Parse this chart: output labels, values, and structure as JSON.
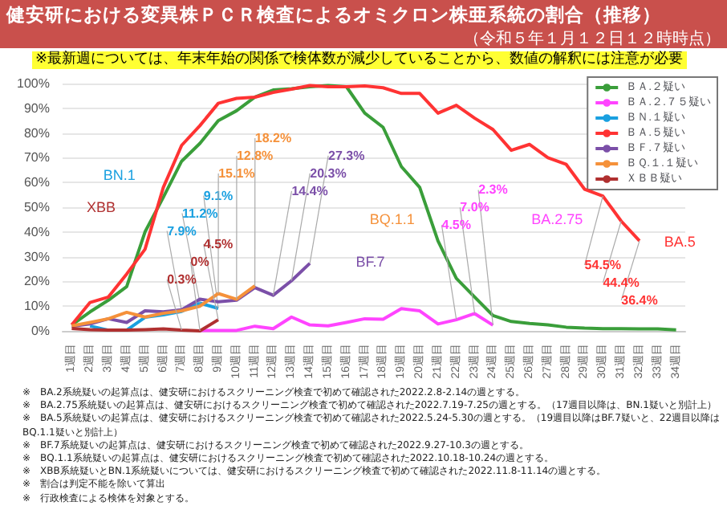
{
  "chart_data": {
    "type": "line",
    "title": "健安研における変異株ＰＣＲ検査によるオミクロン株亜系統の割合（推移）",
    "subtitle": "（令和５年１月１２日１２時時点）",
    "categories": [
      "1週目",
      "2週目",
      "3週目",
      "4週目",
      "5週目",
      "6週目",
      "7週目",
      "8週目",
      "9週目",
      "10週目",
      "11週目",
      "12週目",
      "13週目",
      "14週目",
      "15週目",
      "16週目",
      "17週目",
      "18週目",
      "19週目",
      "20週目",
      "21週目",
      "22週目",
      "23週目",
      "24週目",
      "25週目",
      "26週目",
      "27週目",
      "28週目",
      "29週目",
      "30週目",
      "31週目",
      "32週目",
      "33週目",
      "34週目"
    ],
    "series": [
      {
        "name": "ＢＡ.２疑い",
        "color": "#3a9e3a",
        "values": [
          2.4,
          7.7,
          12.4,
          17.9,
          40,
          54,
          68.6,
          75.8,
          85,
          89,
          94.5,
          97.4,
          97.9,
          98.7,
          99.2,
          98.7,
          88,
          82.3,
          66.4,
          58,
          36.3,
          21.2,
          13.7,
          6.2,
          3.8,
          3,
          2.4,
          1.5,
          1.1,
          0.9,
          0.9,
          0.8,
          0.8,
          0.4
        ]
      },
      {
        "name": "ＢＡ.２.７５疑い",
        "color": "#ff44ff",
        "values": [
          null,
          null,
          null,
          null,
          null,
          null,
          null,
          0.2,
          0.2,
          0.2,
          1.9,
          0.9,
          5.6,
          2.4,
          2,
          3.4,
          4.9,
          4.7,
          9,
          8.1,
          2.8,
          4.5,
          7.0,
          2.3,
          null,
          null,
          null,
          null,
          null,
          null,
          null,
          null,
          null,
          null
        ],
        "value_labels": [
          null,
          null,
          null,
          null,
          null,
          null,
          null,
          null,
          null,
          null,
          null,
          null,
          null,
          null,
          null,
          null,
          null,
          null,
          null,
          null,
          null,
          "4.5%",
          "7.0%",
          "2.3%",
          null,
          null,
          null,
          null,
          null,
          null,
          null,
          null,
          null,
          null
        ]
      },
      {
        "name": "ＢＮ.１疑い",
        "color": "#1aa0e0",
        "values": [
          null,
          2,
          0.3,
          0.3,
          5.5,
          6.5,
          7.9,
          11.2,
          9.1,
          null,
          null,
          null,
          null,
          null,
          null,
          null,
          null,
          null,
          null,
          null,
          null,
          null,
          null,
          null,
          null,
          null,
          null,
          null,
          null,
          null,
          null,
          null,
          null,
          null
        ],
        "value_labels": [
          null,
          null,
          null,
          null,
          null,
          null,
          "7.9%",
          "11.2%",
          "9.1%",
          null,
          null,
          null,
          null,
          null,
          null,
          null,
          null,
          null,
          null,
          null,
          null,
          null,
          null,
          null,
          null,
          null,
          null,
          null,
          null,
          null,
          null,
          null,
          null,
          null
        ]
      },
      {
        "name": "ＢＡ.５疑い",
        "color": "#ff3333",
        "values": [
          2.4,
          11.5,
          13.7,
          23,
          33,
          58,
          75,
          83,
          92,
          94,
          94.5,
          96.4,
          97.7,
          99.2,
          98.7,
          98.7,
          99,
          98.3,
          96,
          96,
          88,
          91.2,
          86,
          81.4,
          73,
          75.4,
          70,
          67.3,
          57.3,
          54.5,
          44.4,
          36.4,
          null,
          null
        ],
        "value_labels": [
          null,
          null,
          null,
          null,
          null,
          null,
          null,
          null,
          null,
          null,
          null,
          null,
          null,
          null,
          null,
          null,
          null,
          null,
          null,
          null,
          null,
          null,
          null,
          null,
          null,
          null,
          null,
          null,
          null,
          "54.5%",
          "44.4%",
          "36.4%",
          null,
          null
        ]
      },
      {
        "name": "ＢＦ.７疑い",
        "color": "#7b4fa8",
        "values": [
          1.9,
          2.8,
          4.9,
          3.4,
          8.1,
          7.7,
          8.5,
          12.8,
          11.8,
          12.4,
          17.5,
          14.4,
          20.3,
          27.3,
          null,
          null,
          null,
          null,
          null,
          null,
          null,
          null,
          null,
          null,
          null,
          null,
          null,
          null,
          null,
          null,
          null,
          null,
          null,
          null
        ],
        "value_labels": [
          null,
          null,
          null,
          null,
          null,
          null,
          null,
          null,
          null,
          null,
          null,
          "14.4%",
          "20.3%",
          "27.3%",
          null,
          null,
          null,
          null,
          null,
          null,
          null,
          null,
          null,
          null,
          null,
          null,
          null,
          null,
          null,
          null,
          null,
          null,
          null,
          null
        ]
      },
      {
        "name": "ＢＱ.１.１疑い",
        "color": "#f5913a",
        "values": [
          2,
          3.4,
          4.9,
          7.5,
          5.6,
          7.1,
          8.1,
          10,
          15.1,
          12.8,
          18.2,
          null,
          null,
          null,
          null,
          null,
          null,
          null,
          null,
          null,
          null,
          null,
          null,
          null,
          null,
          null,
          null,
          null,
          null,
          null,
          null,
          null,
          null,
          null
        ],
        "value_labels": [
          null,
          null,
          null,
          null,
          null,
          null,
          null,
          null,
          "15.1%",
          "12.8%",
          "18.2%",
          null,
          null,
          null,
          null,
          null,
          null,
          null,
          null,
          null,
          null,
          null,
          null,
          null,
          null,
          null,
          null,
          null,
          null,
          null,
          null,
          null,
          null,
          null
        ]
      },
      {
        "name": "ＸＢＢ疑い",
        "color": "#b03030",
        "values": [
          1,
          0.5,
          0.3,
          0.3,
          0.5,
          0.8,
          0.3,
          0,
          4.5,
          null,
          null,
          null,
          null,
          null,
          null,
          null,
          null,
          null,
          null,
          null,
          null,
          null,
          null,
          null,
          null,
          null,
          null,
          null,
          null,
          null,
          null,
          null,
          null,
          null
        ],
        "value_labels": [
          null,
          null,
          null,
          null,
          null,
          null,
          "0.3%",
          "0%",
          "4.5%",
          null,
          null,
          null,
          null,
          null,
          null,
          null,
          null,
          null,
          null,
          null,
          null,
          null,
          null,
          null,
          null,
          null,
          null,
          null,
          null,
          null,
          null,
          null,
          null,
          null
        ]
      }
    ],
    "ylim": [
      0,
      100
    ],
    "yticks": [
      {
        "value": 0,
        "label": "0%"
      },
      {
        "value": 10,
        "label": "10%"
      },
      {
        "value": 20,
        "label": "20%"
      },
      {
        "value": 30,
        "label": "30%"
      },
      {
        "value": 40,
        "label": "40%"
      },
      {
        "value": 50,
        "label": "50%"
      },
      {
        "value": 60,
        "label": "60%"
      },
      {
        "value": 70,
        "label": "70%"
      },
      {
        "value": 80,
        "label": "80%"
      },
      {
        "value": 90,
        "label": "90%"
      },
      {
        "value": 100,
        "label": "100%"
      }
    ],
    "grid": "y",
    "legend": "top right",
    "marker": "none",
    "annotations": [
      "※最新週については、年末年始の関係で検体数が減少していることから、数値の解釈には注意が必要",
      "XBB",
      "BN.1",
      "BQ.1.1",
      "BF.7",
      "BA.2.75",
      "BA.5",
      "※　BA.2系統疑いの起算点は、健安研におけるスクリーニング検査で初めて確認された2022.2.8-2.14の週とする。",
      "※　BA.2.75系統疑いの起算点は、健安研におけるスクリーニング検査で初めて確認された2022.7.19-7.25の週とする。（17週目以降は、BN.1疑いと別計上）",
      "※　BA.5系統疑いの起算点は、健安研におけるスクリーニング検査で初めて確認された2022.5.24-5.30の週とする。（19週目以降はBF.7疑いと、22週目以降はBQ.1.1疑いと別計上）",
      "※　BF.7系統疑いの起算点は、健安研におけるスクリーニング検査で初めて確認された2022.9.27-10.3の週とする。",
      "※　BQ.1.1系統疑いの起算点は、健安研におけるスクリーニング検査で初めて確認された2022.10.18-10.24の週とする。",
      "※　XBB系統疑いとBN.1系統疑いについては、健安研におけるスクリーニング検査で初めて確認された2022.11.8-11.14の週とする。",
      "※　割合は判定不能を除いて算出",
      "※　行政検査による検体を対象とする。"
    ]
  }
}
